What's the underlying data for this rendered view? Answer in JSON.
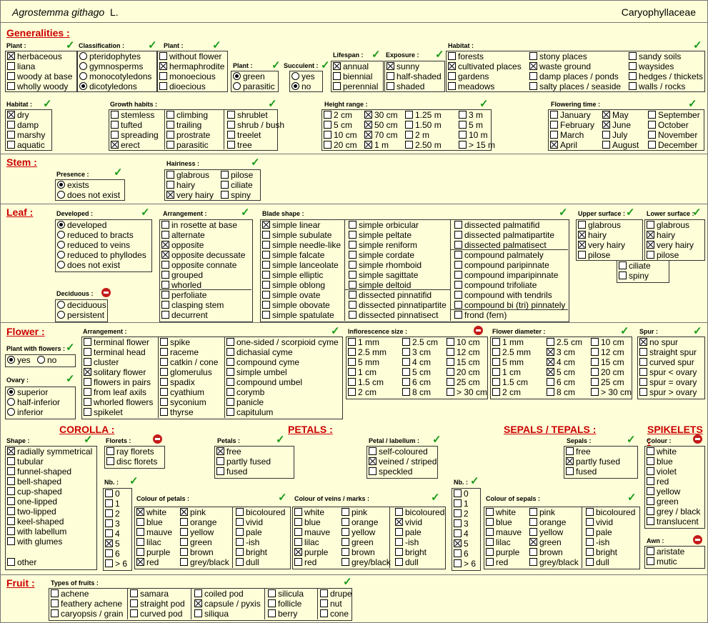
{
  "header": {
    "species": "Agrostemma githago",
    "author": "L.",
    "family": "Caryophyllaceae"
  },
  "s": {
    "generalities": "Generalities :",
    "stem": "Stem :",
    "leaf": "Leaf :",
    "flower": "Flower :",
    "fruit": "Fruit :",
    "corolla": "COROLLA :",
    "petals": "PETALS :",
    "sepals_tepals": "SEPALS / TEPALS :",
    "spikelets": "SPIKELETS :"
  },
  "l": {
    "plant1": "Plant :",
    "classification": "Classification :",
    "plant2": "Plant :",
    "plant3": "Plant :",
    "succulent": "Succulent :",
    "lifespan": "Lifespan :",
    "exposure": "Exposure :",
    "habitat1": "Habitat :",
    "habitat2": "Habitat :",
    "growth": "Growth habits :",
    "height": "Height range :",
    "flowering": "Flowering time :",
    "presence": "Presence :",
    "hairiness": "Hairiness :",
    "developed": "Developed :",
    "arrangement_leaf": "Arrangement :",
    "blade": "Blade shape :",
    "upper": "Upper surface :",
    "lower": "Lower surface :",
    "deciduous": "Deciduous :",
    "arrangement_flower": "Arrangement :",
    "infl_size": "Inflorescence size :",
    "flower_diam": "Flower diameter :",
    "spur": "Spur :",
    "plant_with_flowers": "Plant with flowers :",
    "ovary": "Ovary :",
    "shape": "Shape :",
    "florets": "Florets :",
    "petals": "Petals :",
    "petal_labellum": "Petal / labellum :",
    "sepals": "Sepals :",
    "colour": "Colour :",
    "nb1": "Nb. :",
    "nb2": "Nb. :",
    "colour_petals": "Colour of petals :",
    "colour_veins": "Colour of veins / marks :",
    "colour_sepals": "Colour of sepals :",
    "awn": "Awn :",
    "fruit_types": "Types of fruits :"
  },
  "o": {
    "plant1": [
      "herbaceous",
      "liana",
      "woody at base",
      "wholly woody"
    ],
    "classification": [
      "pteridophytes",
      "gymnosperms",
      "monocotyledons",
      "dicotyledons"
    ],
    "plant2": [
      "without flower",
      "hermaphrodite",
      "monoecious",
      "dioecious"
    ],
    "plant3": [
      "green",
      "parasitic"
    ],
    "succulent": [
      "yes",
      "no"
    ],
    "lifespan": [
      "annual",
      "biennial",
      "perennial"
    ],
    "exposure": [
      "sunny",
      "half-shaded",
      "shaded"
    ],
    "habitat1": [
      "forests",
      "cultivated places",
      "gardens",
      "meadows",
      "stony places",
      "waste ground",
      "damp places / ponds",
      "salty places / seaside",
      "sandy soils",
      "waysides",
      "hedges / thickets",
      "walls / rocks"
    ],
    "habitat2": [
      "dry",
      "damp",
      "marshy",
      "aquatic"
    ],
    "growth": [
      "stemless",
      "tufted",
      "spreading",
      "erect",
      "climbing",
      "trailing",
      "prostrate",
      "parasitic",
      "shrublet",
      "shrub / bush",
      "treelet",
      "tree"
    ],
    "height": [
      "2 cm",
      "5 cm",
      "10 cm",
      "20 cm",
      "30 cm",
      "50 cm",
      "70 cm",
      "1 m",
      "1.25 m",
      "1.50 m",
      "2 m",
      "2.50 m",
      "3 m",
      "5 m",
      "10 m",
      "> 15 m"
    ],
    "flowering": [
      "January",
      "February",
      "March",
      "April",
      "May",
      "June",
      "July",
      "August",
      "September",
      "October",
      "November",
      "December"
    ],
    "presence": [
      "exists",
      "does not exist"
    ],
    "hairiness": [
      "glabrous",
      "hairy",
      "very hairy",
      "pilose",
      "ciliate",
      "spiny"
    ],
    "developed": [
      "developed",
      "reduced to bracts",
      "reduced to veins",
      "reduced to phyllodes",
      "does not exist"
    ],
    "arrangement_leaf": [
      "in rosette at base",
      "alternate",
      "opposite",
      "opposite decussate",
      "opposite connate",
      "grouped",
      "whorled",
      "perfoliate",
      "clasping stem",
      "decurrent"
    ],
    "blade": [
      "simple linear",
      "simple subulate",
      "simple needle-like",
      "simple falcate",
      "simple lanceolate",
      "simple elliptic",
      "simple oblong",
      "simple ovate",
      "simple obovate",
      "simple spatulate",
      "simple orbicular",
      "simple peltate",
      "simple reniform",
      "simple cordate",
      "simple rhomboid",
      "simple sagittate",
      "simple deltoid",
      "dissected pinnatifid",
      "dissected pinnatipartite",
      "dissected pinnatisect",
      "dissected palmatifid",
      "dissected palmatipartite",
      "dissected palmatisect",
      "compound palmately",
      "compound paripinnate",
      "compound imparipinnate",
      "compound trifoliate",
      "compound with tendrils",
      "compound bi (tri) pinnately",
      "frond  (fern)"
    ],
    "upper": [
      "glabrous",
      "hairy",
      "very hairy",
      "pilose"
    ],
    "lower": [
      "glabrous",
      "hairy",
      "very hairy",
      "pilose"
    ],
    "ciliate_spiny": [
      "ciliate",
      "spiny"
    ],
    "deciduous": [
      "deciduous",
      "persistent"
    ],
    "arrangement_flower": [
      "terminal flower",
      "terminal head",
      "cluster",
      "solitary flower",
      "flowers in pairs",
      "from leaf axils",
      "whorled flowers",
      "spikelet",
      "spike",
      "raceme",
      "catkin / cone",
      "glomerulus",
      "spadix",
      "cyathium",
      "syconium",
      "thyrse",
      "one-sided / scorpioid cyme",
      "dichasial cyme",
      "compound cyme",
      "simple umbel",
      "compound umbel",
      "corymb",
      "panicle",
      "capitulum"
    ],
    "infl_size": [
      "1 mm",
      "2.5 mm",
      "5 mm",
      "1 cm",
      "1.5 cm",
      "2 cm",
      "2.5 cm",
      "3 cm",
      "4 cm",
      "5 cm",
      "6 cm",
      "8 cm",
      "10 cm",
      "12 cm",
      "15 cm",
      "20 cm",
      "25 cm",
      "> 30 cm"
    ],
    "flower_diam": [
      "1 mm",
      "2.5 mm",
      "5 mm",
      "1 cm",
      "1.5 cm",
      "2 cm",
      "2.5 cm",
      "3 cm",
      "4 cm",
      "5 cm",
      "6 cm",
      "8 cm",
      "10 cm",
      "12 cm",
      "15 cm",
      "20 cm",
      "25 cm",
      "> 30 cm"
    ],
    "spur": [
      "no spur",
      "straight spur",
      "curved spur",
      "spur < ovary",
      "spur = ovary",
      "spur > ovary"
    ],
    "pwf": [
      "yes",
      "no"
    ],
    "ovary": [
      "superior",
      "half-inferior",
      "inferior"
    ],
    "shape": [
      "radially symmetrical",
      "tubular",
      "funnel-shaped",
      "bell-shaped",
      "cup-shaped",
      "one-lipped",
      "two-lipped",
      "keel-shaped",
      "with labellum",
      "with glumes",
      "other"
    ],
    "florets": [
      "ray florets",
      "disc florets"
    ],
    "petals": [
      "free",
      "partly fused",
      "fused"
    ],
    "petal_labellum": [
      "self-coloured",
      "veined / striped",
      "speckled"
    ],
    "sepals": [
      "free",
      "partly fused",
      "fused"
    ],
    "spike_colour": [
      "white",
      "blue",
      "violet",
      "red",
      "yellow",
      "green",
      "grey / black",
      "translucent"
    ],
    "nb": [
      "0",
      "1",
      "2",
      "3",
      "4",
      "5",
      "6",
      "> 6"
    ],
    "colour_set": [
      "white",
      "blue",
      "mauve",
      "lilac",
      "purple",
      "red",
      "pink",
      "orange",
      "yellow",
      "green",
      "brown",
      "grey/black",
      "bicoloured",
      "vivid",
      "pale",
      "-ish",
      "bright",
      "dull"
    ],
    "awn": [
      "aristate",
      "mutic"
    ],
    "fruit": [
      "achene",
      "feathery achene",
      "caryopsis / grain",
      "samara",
      "straight pod",
      "curved pod",
      "coiled pod",
      "capsule / pyxis",
      "siliqua",
      "silicula",
      "follicle",
      "berry",
      "drupe",
      "nut",
      "cone"
    ]
  },
  "checked": {
    "plant1": [
      "herbaceous"
    ],
    "classification": [
      "dicotyledons"
    ],
    "plant2": [
      "hermaphrodite"
    ],
    "plant3": [
      "green"
    ],
    "succulent": [
      "no"
    ],
    "lifespan": [
      "annual"
    ],
    "exposure": [
      "sunny"
    ],
    "habitat1": [
      "cultivated places",
      "waste ground"
    ],
    "habitat2": [
      "dry"
    ],
    "growth": [
      "erect"
    ],
    "height": [
      "30 cm",
      "50 cm",
      "70 cm",
      "1 m"
    ],
    "flowering": [
      "April",
      "May",
      "June"
    ],
    "presence": [
      "exists"
    ],
    "hairiness": [
      "very hairy"
    ],
    "developed": [
      "developed"
    ],
    "arrangement_leaf": [
      "opposite",
      "opposite decussate"
    ],
    "blade": [
      "simple linear"
    ],
    "upper": [
      "hairy",
      "very hairy"
    ],
    "lower": [
      "hairy",
      "very hairy"
    ],
    "arrangement_flower": [
      "solitary flower"
    ],
    "flower_diam": [
      "3 cm",
      "4 cm",
      "5 cm"
    ],
    "spur": [
      "no spur"
    ],
    "pwf": [
      "yes"
    ],
    "ovary": [
      "superior"
    ],
    "shape": [
      "radially symmetrical"
    ],
    "petals": [
      "free"
    ],
    "petal_labellum": [
      "veined / striped"
    ],
    "sepals": [
      "partly fused"
    ],
    "nb1": [
      "5"
    ],
    "nb2": [
      "5"
    ],
    "colour_petals": [
      "white",
      "pink",
      "red"
    ],
    "colour_veins": [
      "purple",
      "vivid"
    ],
    "colour_sepals": [
      "green"
    ],
    "fruit": [
      "capsule / pyxis"
    ]
  },
  "icons": {
    "confirmed": "check-icon",
    "not_applicable": "no-entry-icon"
  },
  "colors": {
    "background": "#fefed8",
    "section_title": "#cc0000",
    "check": "#1a9a1a",
    "no_entry": "#c41b1b"
  }
}
